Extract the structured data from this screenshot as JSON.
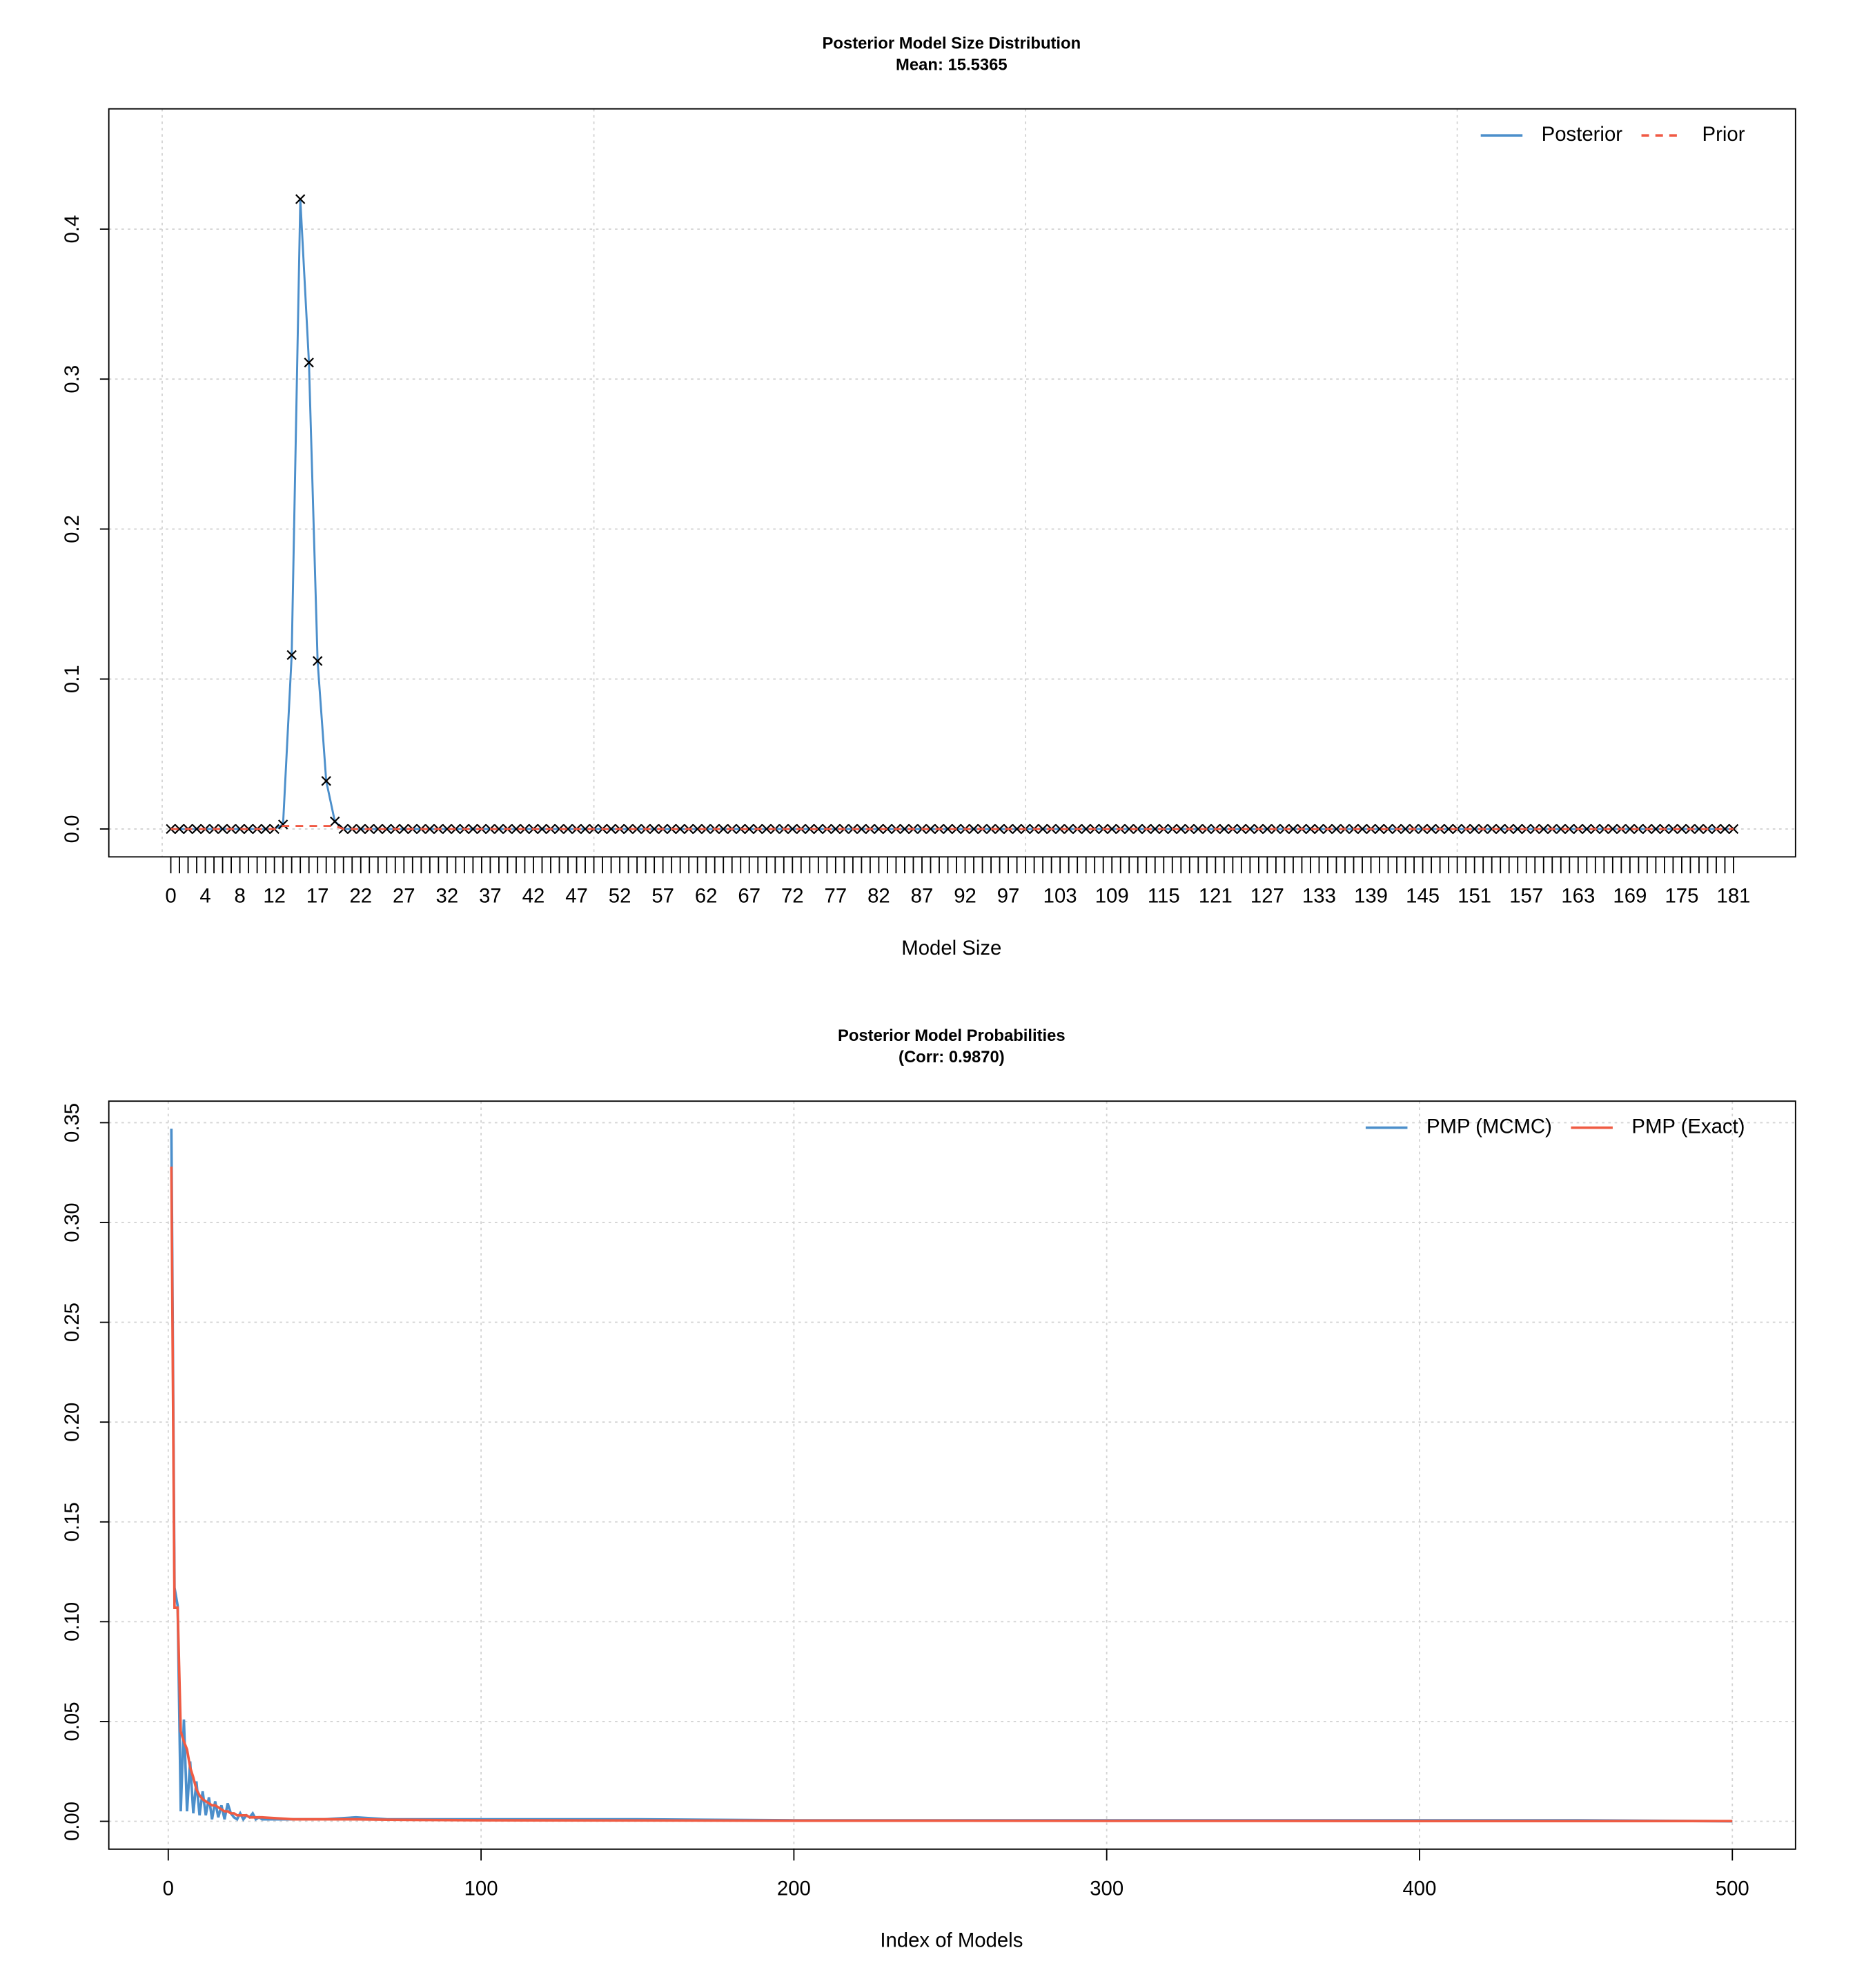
{
  "chart_data": [
    {
      "type": "line",
      "title": "Posterior Model Size Distribution",
      "subtitle": "Mean: 15.5365",
      "x_label": "Model Size",
      "categories": [
        "0",
        null,
        null,
        null,
        "4",
        null,
        null,
        null,
        "8",
        null,
        null,
        null,
        "12",
        null,
        null,
        null,
        null,
        "17",
        null,
        null,
        null,
        null,
        "22",
        null,
        null,
        null,
        null,
        "27",
        null,
        null,
        null,
        null,
        "32",
        null,
        null,
        null,
        null,
        "37",
        null,
        null,
        null,
        null,
        "42",
        null,
        null,
        null,
        null,
        "47",
        null,
        null,
        null,
        null,
        "52",
        null,
        null,
        null,
        null,
        "57",
        null,
        null,
        null,
        null,
        "62",
        null,
        null,
        null,
        null,
        "67",
        null,
        null,
        null,
        null,
        "72",
        null,
        null,
        null,
        null,
        "77",
        null,
        null,
        null,
        null,
        "82",
        null,
        null,
        null,
        null,
        "87",
        null,
        null,
        null,
        null,
        "92",
        null,
        null,
        null,
        null,
        "97",
        null,
        null,
        null,
        null,
        null,
        "103",
        null,
        null,
        null,
        null,
        null,
        "109",
        null,
        null,
        null,
        null,
        null,
        "115",
        null,
        null,
        null,
        null,
        null,
        "121",
        null,
        null,
        null,
        null,
        null,
        "127",
        null,
        null,
        null,
        null,
        null,
        "133",
        null,
        null,
        null,
        null,
        null,
        "139",
        null,
        null,
        null,
        null,
        null,
        "145",
        null,
        null,
        null,
        null,
        null,
        "151",
        null,
        null,
        null,
        null,
        null,
        "157",
        null,
        null,
        null,
        null,
        null,
        "163",
        null,
        null,
        null,
        null,
        null,
        "169",
        null,
        null,
        null,
        null,
        null,
        "175",
        null,
        null,
        null,
        null,
        null,
        "181"
      ],
      "series": [
        {
          "name": "Posterior",
          "color": "#4c8fcb",
          "marker": "x",
          "values": [
            0,
            0,
            0,
            0,
            0,
            0,
            0,
            0,
            0,
            0,
            0,
            0,
            0,
            0.003,
            0.116,
            0.42,
            0.311,
            0.112,
            0.032,
            0.005,
            0,
            0,
            0,
            0,
            0,
            0,
            0,
            0,
            0,
            0,
            0,
            0,
            0,
            0,
            0,
            0,
            0,
            0,
            0,
            0,
            0,
            0,
            0,
            0,
            0,
            0,
            0,
            0,
            0,
            0,
            0,
            0,
            0,
            0,
            0,
            0,
            0,
            0,
            0,
            0,
            0,
            0,
            0,
            0,
            0,
            0,
            0,
            0,
            0,
            0,
            0,
            0,
            0,
            0,
            0,
            0,
            0,
            0,
            0,
            0,
            0,
            0,
            0,
            0,
            0,
            0,
            0,
            0,
            0,
            0,
            0,
            0,
            0,
            0,
            0,
            0,
            0,
            0,
            0,
            0,
            0,
            0,
            0,
            0,
            0,
            0,
            0,
            0,
            0,
            0,
            0,
            0,
            0,
            0,
            0,
            0,
            0,
            0,
            0,
            0,
            0,
            0,
            0,
            0,
            0,
            0,
            0,
            0,
            0,
            0,
            0,
            0,
            0,
            0,
            0,
            0,
            0,
            0,
            0,
            0,
            0,
            0,
            0,
            0,
            0,
            0,
            0,
            0,
            0,
            0,
            0,
            0,
            0,
            0,
            0,
            0,
            0,
            0,
            0,
            0,
            0,
            0,
            0,
            0,
            0,
            0,
            0,
            0,
            0,
            0,
            0,
            0,
            0,
            0,
            0,
            0,
            0,
            0,
            0,
            0,
            0,
            0
          ]
        },
        {
          "name": "Prior",
          "color": "#f05a45",
          "dashed": true,
          "values": [
            0,
            0,
            0,
            0,
            0,
            0,
            0,
            0,
            0,
            0,
            0,
            0,
            0,
            0.002,
            0.002,
            0.002,
            0.002,
            0.002,
            0.002,
            0.002,
            0,
            0,
            0,
            0,
            0,
            0,
            0,
            0,
            0,
            0,
            0,
            0,
            0,
            0,
            0,
            0,
            0,
            0,
            0,
            0,
            0,
            0,
            0,
            0,
            0,
            0,
            0,
            0,
            0,
            0,
            0,
            0,
            0,
            0,
            0,
            0,
            0,
            0,
            0,
            0,
            0,
            0,
            0,
            0,
            0,
            0,
            0,
            0,
            0,
            0,
            0,
            0,
            0,
            0,
            0,
            0,
            0,
            0,
            0,
            0,
            0,
            0,
            0,
            0,
            0,
            0,
            0,
            0,
            0,
            0,
            0,
            0,
            0,
            0,
            0,
            0,
            0,
            0,
            0,
            0,
            0,
            0,
            0,
            0,
            0,
            0,
            0,
            0,
            0,
            0,
            0,
            0,
            0,
            0,
            0,
            0,
            0,
            0,
            0,
            0,
            0,
            0,
            0,
            0,
            0,
            0,
            0,
            0,
            0,
            0,
            0,
            0,
            0,
            0,
            0,
            0,
            0,
            0,
            0,
            0,
            0,
            0,
            0,
            0,
            0,
            0,
            0,
            0,
            0,
            0,
            0,
            0,
            0,
            0,
            0,
            0,
            0,
            0,
            0,
            0,
            0,
            0,
            0,
            0,
            0,
            0,
            0,
            0,
            0,
            0,
            0,
            0,
            0,
            0,
            0,
            0,
            0,
            0,
            0,
            0,
            0,
            0
          ]
        }
      ],
      "xlim": [
        -7.18,
        188.18
      ],
      "xgrid": [
        -1,
        49,
        99,
        149
      ],
      "ylim": [
        -0.0186,
        0.4802
      ],
      "yticks": [
        {
          "value": 0,
          "label": "0.0"
        },
        0.1,
        0.2,
        0.3,
        0.4
      ],
      "grid": true,
      "legend": "top-right"
    },
    {
      "type": "line",
      "title": "Posterior Model Probabilities",
      "subtitle": "(Corr: 0.9870)",
      "x_label": "Index of Models",
      "x": [
        1,
        2,
        3,
        4,
        5,
        6,
        7,
        8,
        9,
        10,
        11,
        12,
        13,
        14,
        15,
        16,
        17,
        18,
        19,
        20,
        21,
        22,
        23,
        24,
        25,
        26,
        27,
        28,
        29,
        30,
        40,
        50,
        60,
        70,
        80,
        90,
        100,
        150,
        200,
        250,
        300,
        350,
        400,
        450,
        500
      ],
      "series": [
        {
          "name": "PMP (MCMC)",
          "color": "#4c8fcb",
          "values": [
            0.347,
            0.117,
            0.108,
            0.005,
            0.051,
            0.005,
            0.03,
            0.004,
            0.02,
            0.003,
            0.015,
            0.003,
            0.012,
            0.001,
            0.01,
            0.002,
            0.008,
            0.001,
            0.009,
            0.004,
            0.002,
            0.001,
            0.004,
            0.001,
            0.003,
            0.002,
            0.004,
            0.001,
            0.002,
            0.001,
            0.001,
            0.001,
            0.002,
            0.001,
            0.001,
            0.001,
            0.001,
            0.001,
            0.0005,
            0.0005,
            0.0005,
            0.0005,
            0.0005,
            0.0005,
            0
          ]
        },
        {
          "name": "PMP (Exact)",
          "color": "#ef5b43",
          "values": [
            0.328,
            0.107,
            0.107,
            0.045,
            0.04,
            0.036,
            0.027,
            0.022,
            0.016,
            0.013,
            0.011,
            0.01,
            0.009,
            0.008,
            0.008,
            0.007,
            0.006,
            0.005,
            0.005,
            0.004,
            0.004,
            0.003,
            0.003,
            0.003,
            0.003,
            0.002,
            0.002,
            0.002,
            0.002,
            0.002,
            0.001,
            0.001,
            0.001,
            0.0008,
            0.0007,
            0.0006,
            0.0005,
            0.0004,
            0.0003,
            0.0003,
            0.0002,
            0.0002,
            0.0001,
            0.0001,
            0.0001
          ]
        }
      ],
      "xlim": [
        -19.0,
        520.2
      ],
      "xticks": [
        0,
        100,
        200,
        300,
        400,
        500
      ],
      "ylim": [
        -0.01395,
        0.3608
      ],
      "yticks": [
        {
          "value": 0,
          "label": "0.00"
        },
        0.05,
        {
          "value": 0.1,
          "label": "0.10"
        },
        0.15,
        {
          "value": 0.2,
          "label": "0.20"
        },
        0.25,
        {
          "value": 0.3,
          "label": "0.30"
        },
        0.35
      ],
      "grid": true,
      "legend": "top-right"
    }
  ]
}
